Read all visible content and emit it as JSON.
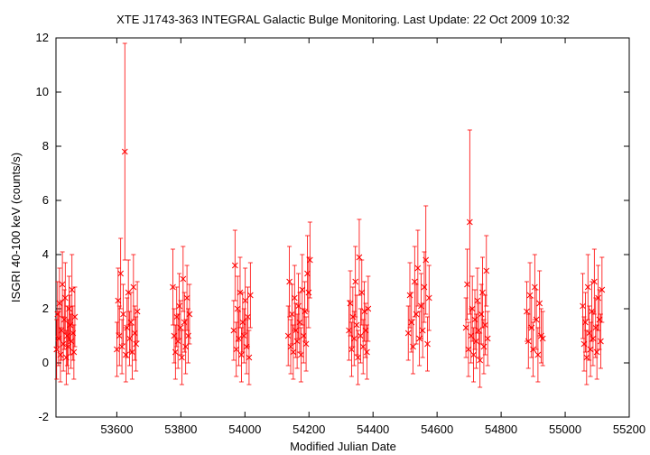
{
  "chart_data": {
    "type": "scatter",
    "title": "XTE J1743-363   INTEGRAL Galactic Bulge Monitoring.  Last Update: 22 Oct 2009 10:32",
    "xlabel": "Modified Julian Date",
    "ylabel": "ISGRI 40-100 keV (counts/s)",
    "xlim": [
      53410,
      55200
    ],
    "ylim": [
      -2,
      12
    ],
    "xticks": [
      53600,
      53800,
      54000,
      54200,
      54400,
      54600,
      54800,
      55000,
      55200
    ],
    "yticks": [
      -2,
      0,
      2,
      4,
      6,
      8,
      10,
      12
    ],
    "grid": false,
    "legend": false,
    "marker": "x",
    "error_bars": true,
    "color": "#ff0000",
    "points": [
      {
        "x": 53412,
        "y": 0.5,
        "err": 1.1
      },
      {
        "x": 53415,
        "y": 1.8,
        "err": 1.2
      },
      {
        "x": 53418,
        "y": 0.9,
        "err": 1.0
      },
      {
        "x": 53421,
        "y": 2.2,
        "err": 1.3
      },
      {
        "x": 53424,
        "y": 0.3,
        "err": 1.0
      },
      {
        "x": 53427,
        "y": 1.2,
        "err": 1.1
      },
      {
        "x": 53430,
        "y": 2.9,
        "err": 1.2
      },
      {
        "x": 53433,
        "y": 0.7,
        "err": 1.0
      },
      {
        "x": 53436,
        "y": 1.6,
        "err": 1.1
      },
      {
        "x": 53439,
        "y": 2.4,
        "err": 1.3
      },
      {
        "x": 53442,
        "y": 0.2,
        "err": 1.0
      },
      {
        "x": 53445,
        "y": 1.0,
        "err": 1.1
      },
      {
        "x": 53448,
        "y": 0.6,
        "err": 1.0
      },
      {
        "x": 53451,
        "y": 2.0,
        "err": 1.2
      },
      {
        "x": 53454,
        "y": 1.4,
        "err": 1.1
      },
      {
        "x": 53457,
        "y": 0.8,
        "err": 1.0
      },
      {
        "x": 53460,
        "y": 2.7,
        "err": 1.3
      },
      {
        "x": 53463,
        "y": 1.1,
        "err": 1.0
      },
      {
        "x": 53466,
        "y": 0.4,
        "err": 1.0
      },
      {
        "x": 53469,
        "y": 1.7,
        "err": 1.1
      },
      {
        "x": 53600,
        "y": 0.5,
        "err": 1.0
      },
      {
        "x": 53604,
        "y": 2.3,
        "err": 1.2
      },
      {
        "x": 53608,
        "y": 1.0,
        "err": 1.1
      },
      {
        "x": 53612,
        "y": 3.3,
        "err": 1.3
      },
      {
        "x": 53616,
        "y": 0.6,
        "err": 1.0
      },
      {
        "x": 53620,
        "y": 1.8,
        "err": 1.1
      },
      {
        "x": 53625,
        "y": 7.8,
        "err": 4.0
      },
      {
        "x": 53628,
        "y": 0.3,
        "err": 1.0
      },
      {
        "x": 53632,
        "y": 1.3,
        "err": 1.1
      },
      {
        "x": 53636,
        "y": 2.6,
        "err": 1.2
      },
      {
        "x": 53640,
        "y": 0.9,
        "err": 1.0
      },
      {
        "x": 53644,
        "y": 1.5,
        "err": 1.1
      },
      {
        "x": 53648,
        "y": 0.4,
        "err": 1.0
      },
      {
        "x": 53652,
        "y": 2.8,
        "err": 1.2
      },
      {
        "x": 53656,
        "y": 1.1,
        "err": 1.0
      },
      {
        "x": 53660,
        "y": 0.7,
        "err": 1.0
      },
      {
        "x": 53664,
        "y": 1.9,
        "err": 1.1
      },
      {
        "x": 53775,
        "y": 2.8,
        "err": 1.4
      },
      {
        "x": 53779,
        "y": 1.0,
        "err": 1.0
      },
      {
        "x": 53783,
        "y": 0.4,
        "err": 1.0
      },
      {
        "x": 53787,
        "y": 1.7,
        "err": 1.1
      },
      {
        "x": 53791,
        "y": 0.8,
        "err": 1.0
      },
      {
        "x": 53795,
        "y": 2.1,
        "err": 1.2
      },
      {
        "x": 53799,
        "y": 1.3,
        "err": 1.0
      },
      {
        "x": 53803,
        "y": 0.2,
        "err": 1.0
      },
      {
        "x": 53807,
        "y": 3.1,
        "err": 1.2
      },
      {
        "x": 53811,
        "y": 1.5,
        "err": 1.1
      },
      {
        "x": 53815,
        "y": 0.6,
        "err": 1.0
      },
      {
        "x": 53819,
        "y": 2.4,
        "err": 1.2
      },
      {
        "x": 53823,
        "y": 1.0,
        "err": 1.0
      },
      {
        "x": 53827,
        "y": 1.8,
        "err": 1.1
      },
      {
        "x": 53965,
        "y": 1.2,
        "err": 1.1
      },
      {
        "x": 53969,
        "y": 3.6,
        "err": 1.3
      },
      {
        "x": 53973,
        "y": 0.5,
        "err": 1.0
      },
      {
        "x": 53977,
        "y": 2.0,
        "err": 1.2
      },
      {
        "x": 53981,
        "y": 0.9,
        "err": 1.0
      },
      {
        "x": 53985,
        "y": 2.6,
        "err": 1.3
      },
      {
        "x": 53989,
        "y": 0.3,
        "err": 1.0
      },
      {
        "x": 53993,
        "y": 1.5,
        "err": 1.1
      },
      {
        "x": 53997,
        "y": 1.0,
        "err": 1.0
      },
      {
        "x": 54001,
        "y": 2.3,
        "err": 1.2
      },
      {
        "x": 54005,
        "y": 0.6,
        "err": 1.0
      },
      {
        "x": 54009,
        "y": 1.7,
        "err": 1.1
      },
      {
        "x": 54013,
        "y": 0.2,
        "err": 1.0
      },
      {
        "x": 54017,
        "y": 2.5,
        "err": 1.2
      },
      {
        "x": 54135,
        "y": 1.0,
        "err": 1.1
      },
      {
        "x": 54139,
        "y": 3.0,
        "err": 1.3
      },
      {
        "x": 54143,
        "y": 0.6,
        "err": 1.0
      },
      {
        "x": 54147,
        "y": 1.8,
        "err": 1.1
      },
      {
        "x": 54151,
        "y": 0.4,
        "err": 1.0
      },
      {
        "x": 54155,
        "y": 2.4,
        "err": 1.2
      },
      {
        "x": 54159,
        "y": 1.2,
        "err": 1.0
      },
      {
        "x": 54163,
        "y": 0.8,
        "err": 1.0
      },
      {
        "x": 54167,
        "y": 2.1,
        "err": 1.2
      },
      {
        "x": 54171,
        "y": 1.5,
        "err": 1.1
      },
      {
        "x": 54175,
        "y": 0.3,
        "err": 1.0
      },
      {
        "x": 54179,
        "y": 2.7,
        "err": 1.3
      },
      {
        "x": 54183,
        "y": 1.0,
        "err": 1.0
      },
      {
        "x": 54187,
        "y": 1.9,
        "err": 1.1
      },
      {
        "x": 54191,
        "y": 0.7,
        "err": 1.0
      },
      {
        "x": 54195,
        "y": 3.3,
        "err": 1.4
      },
      {
        "x": 54199,
        "y": 2.6,
        "err": 1.3
      },
      {
        "x": 54203,
        "y": 3.8,
        "err": 1.4
      },
      {
        "x": 54325,
        "y": 1.2,
        "err": 1.1
      },
      {
        "x": 54329,
        "y": 2.2,
        "err": 1.2
      },
      {
        "x": 54333,
        "y": 0.5,
        "err": 1.0
      },
      {
        "x": 54337,
        "y": 1.7,
        "err": 1.1
      },
      {
        "x": 54341,
        "y": 0.9,
        "err": 1.0
      },
      {
        "x": 54345,
        "y": 3.0,
        "err": 1.3
      },
      {
        "x": 54349,
        "y": 1.4,
        "err": 1.1
      },
      {
        "x": 54353,
        "y": 0.2,
        "err": 1.0
      },
      {
        "x": 54357,
        "y": 3.9,
        "err": 1.4
      },
      {
        "x": 54361,
        "y": 1.0,
        "err": 1.0
      },
      {
        "x": 54365,
        "y": 2.6,
        "err": 1.2
      },
      {
        "x": 54369,
        "y": 0.6,
        "err": 1.0
      },
      {
        "x": 54373,
        "y": 1.9,
        "err": 1.1
      },
      {
        "x": 54377,
        "y": 1.2,
        "err": 1.0
      },
      {
        "x": 54381,
        "y": 0.4,
        "err": 1.0
      },
      {
        "x": 54385,
        "y": 2.0,
        "err": 1.2
      },
      {
        "x": 54510,
        "y": 1.1,
        "err": 1.0
      },
      {
        "x": 54515,
        "y": 2.5,
        "err": 1.2
      },
      {
        "x": 54520,
        "y": 1.5,
        "err": 1.1
      },
      {
        "x": 54525,
        "y": 0.6,
        "err": 1.0
      },
      {
        "x": 54530,
        "y": 3.0,
        "err": 1.3
      },
      {
        "x": 54535,
        "y": 1.8,
        "err": 1.1
      },
      {
        "x": 54540,
        "y": 3.5,
        "err": 1.4
      },
      {
        "x": 54545,
        "y": 0.9,
        "err": 1.0
      },
      {
        "x": 54550,
        "y": 2.1,
        "err": 1.2
      },
      {
        "x": 54555,
        "y": 1.2,
        "err": 1.0
      },
      {
        "x": 54560,
        "y": 2.8,
        "err": 1.3
      },
      {
        "x": 54565,
        "y": 3.8,
        "err": 2.0
      },
      {
        "x": 54570,
        "y": 0.7,
        "err": 1.0
      },
      {
        "x": 54575,
        "y": 2.4,
        "err": 1.2
      },
      {
        "x": 54690,
        "y": 1.3,
        "err": 1.1
      },
      {
        "x": 54694,
        "y": 2.9,
        "err": 1.3
      },
      {
        "x": 54698,
        "y": 0.5,
        "err": 1.0
      },
      {
        "x": 54702,
        "y": 5.2,
        "err": 3.4
      },
      {
        "x": 54706,
        "y": 1.0,
        "err": 1.0
      },
      {
        "x": 54710,
        "y": 2.0,
        "err": 1.2
      },
      {
        "x": 54714,
        "y": 0.3,
        "err": 1.0
      },
      {
        "x": 54718,
        "y": 1.6,
        "err": 1.1
      },
      {
        "x": 54722,
        "y": 0.8,
        "err": 1.0
      },
      {
        "x": 54726,
        "y": 2.3,
        "err": 1.2
      },
      {
        "x": 54730,
        "y": 1.2,
        "err": 1.0
      },
      {
        "x": 54734,
        "y": 0.1,
        "err": 1.0
      },
      {
        "x": 54738,
        "y": 1.8,
        "err": 1.1
      },
      {
        "x": 54742,
        "y": 2.6,
        "err": 1.3
      },
      {
        "x": 54746,
        "y": 0.6,
        "err": 1.0
      },
      {
        "x": 54750,
        "y": 1.4,
        "err": 1.1
      },
      {
        "x": 54754,
        "y": 3.4,
        "err": 1.3
      },
      {
        "x": 54758,
        "y": 0.9,
        "err": 1.0
      },
      {
        "x": 54880,
        "y": 1.9,
        "err": 1.1
      },
      {
        "x": 54885,
        "y": 0.8,
        "err": 1.0
      },
      {
        "x": 54890,
        "y": 2.5,
        "err": 1.2
      },
      {
        "x": 54895,
        "y": 1.3,
        "err": 1.1
      },
      {
        "x": 54900,
        "y": 0.5,
        "err": 1.0
      },
      {
        "x": 54905,
        "y": 2.8,
        "err": 1.2
      },
      {
        "x": 54910,
        "y": 1.6,
        "err": 1.1
      },
      {
        "x": 54915,
        "y": 0.3,
        "err": 1.0
      },
      {
        "x": 54920,
        "y": 2.2,
        "err": 1.2
      },
      {
        "x": 54925,
        "y": 1.0,
        "err": 1.0
      },
      {
        "x": 54930,
        "y": 0.9,
        "err": 1.0
      },
      {
        "x": 55055,
        "y": 2.1,
        "err": 1.2
      },
      {
        "x": 55059,
        "y": 0.7,
        "err": 1.0
      },
      {
        "x": 55063,
        "y": 1.5,
        "err": 1.1
      },
      {
        "x": 55067,
        "y": 0.2,
        "err": 1.0
      },
      {
        "x": 55071,
        "y": 2.8,
        "err": 1.2
      },
      {
        "x": 55075,
        "y": 1.1,
        "err": 1.0
      },
      {
        "x": 55079,
        "y": 0.5,
        "err": 1.0
      },
      {
        "x": 55083,
        "y": 1.9,
        "err": 1.1
      },
      {
        "x": 55087,
        "y": 0.9,
        "err": 1.0
      },
      {
        "x": 55091,
        "y": 3.0,
        "err": 1.2
      },
      {
        "x": 55095,
        "y": 1.3,
        "err": 1.1
      },
      {
        "x": 55099,
        "y": 0.4,
        "err": 1.0
      },
      {
        "x": 55103,
        "y": 2.4,
        "err": 1.2
      },
      {
        "x": 55107,
        "y": 1.6,
        "err": 1.1
      },
      {
        "x": 55111,
        "y": 0.8,
        "err": 1.0
      },
      {
        "x": 55115,
        "y": 2.7,
        "err": 1.2
      }
    ]
  }
}
